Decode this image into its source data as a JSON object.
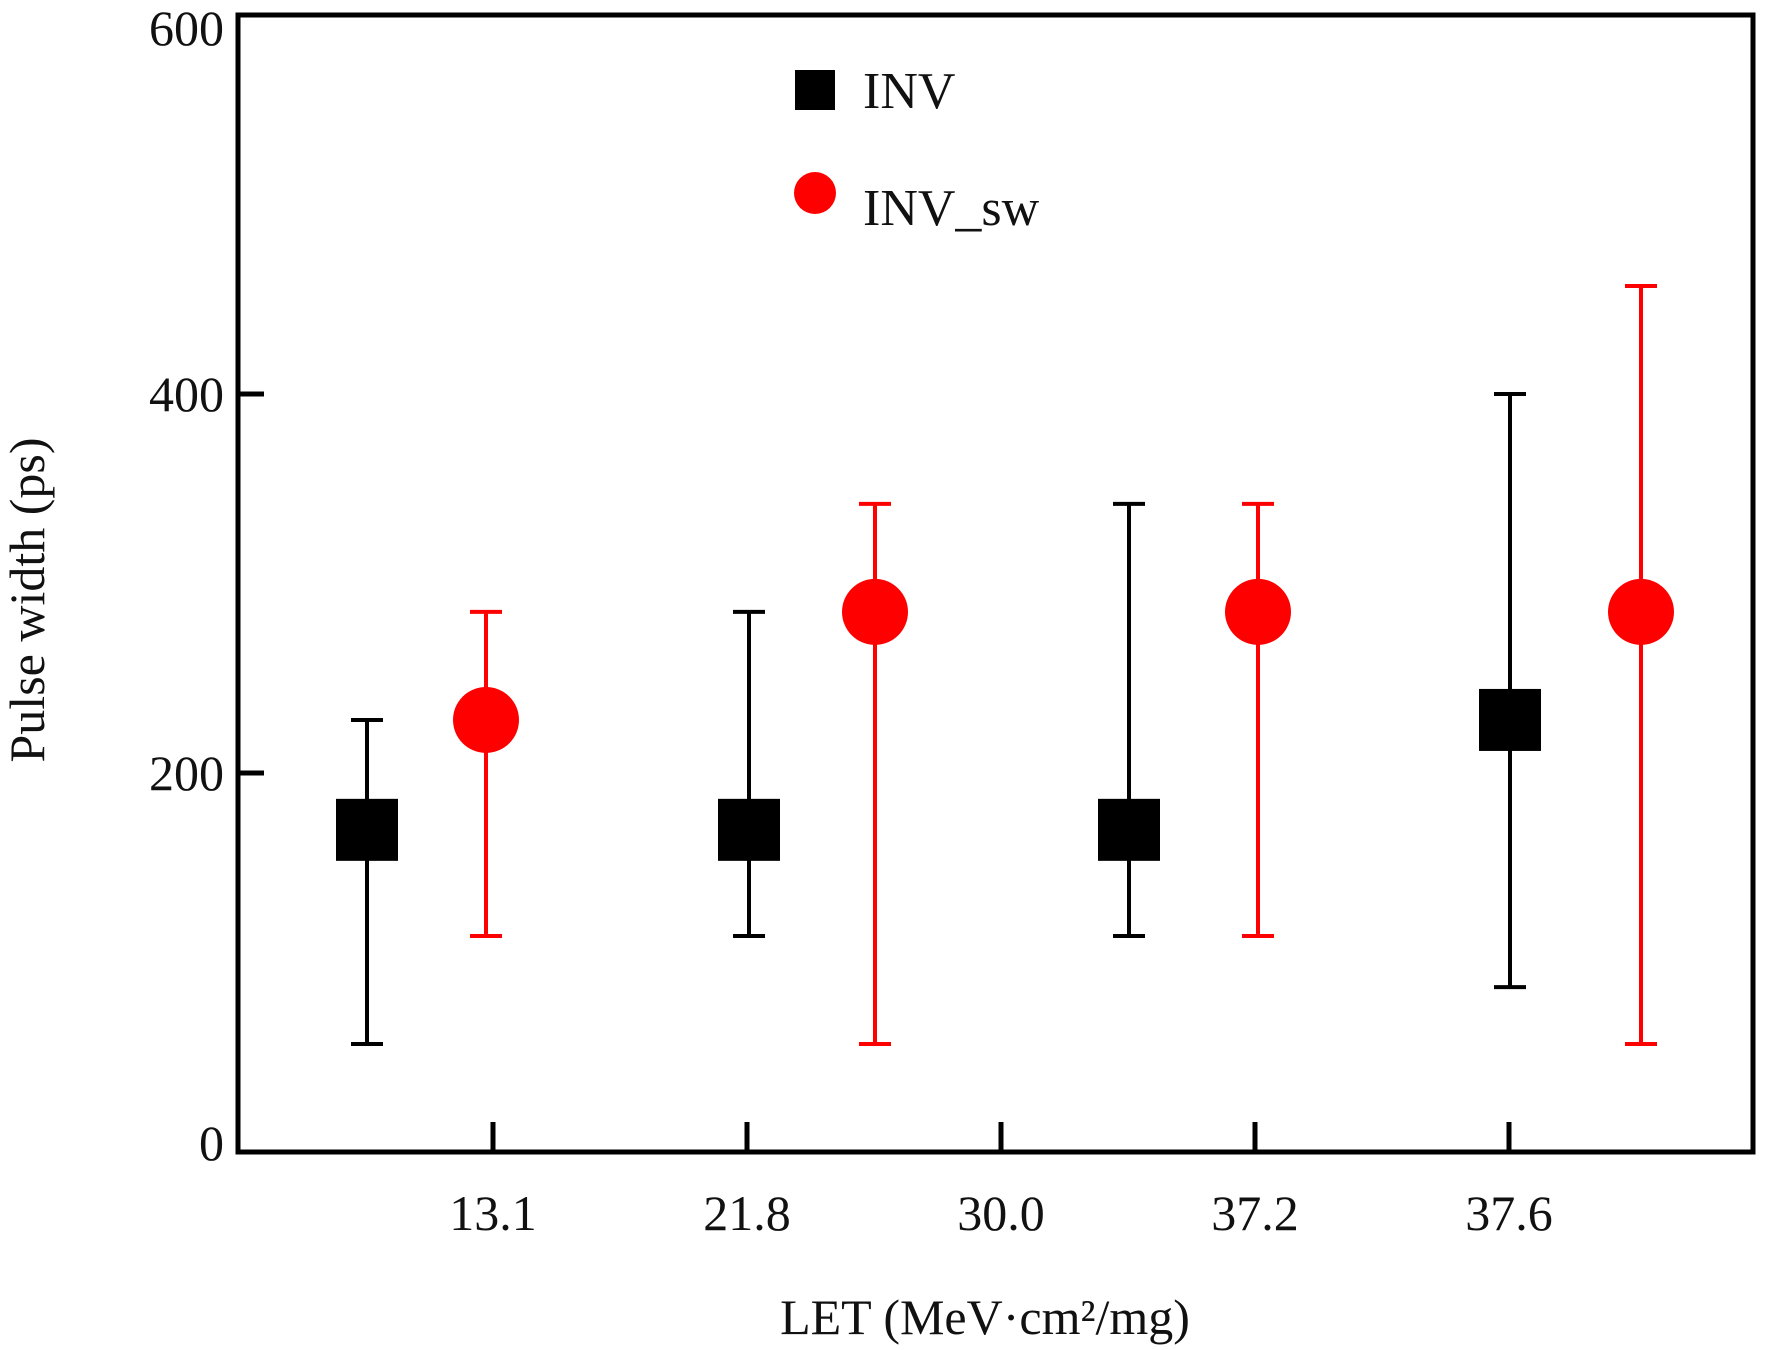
{
  "chart_data": {
    "type": "scatter",
    "title": "",
    "xlabel": "LET (MeV·cm²/mg)",
    "ylabel": "Pulse width (ps)",
    "ylim": [
      0,
      600
    ],
    "yticks": [
      "0",
      "200",
      "400",
      "600"
    ],
    "categories": [
      "13.1",
      "21.8",
      "30.0",
      "37.2",
      "37.6"
    ],
    "grid": false,
    "legend_position": "top-center",
    "series": [
      {
        "name": "INV",
        "marker": "square",
        "color": "#000000",
        "points": [
          {
            "y": 170,
            "low": 57,
            "high": 228
          },
          {
            "y": 170,
            "low": 114,
            "high": 285
          },
          {
            "y": 170,
            "low": 114,
            "high": 342
          },
          {
            "y": 228,
            "low": 87,
            "high": 400
          }
        ]
      },
      {
        "name": "INV_sw",
        "marker": "circle",
        "color": "#ff0000",
        "points": [
          {
            "y": 228,
            "low": 114,
            "high": 285
          },
          {
            "y": 285,
            "low": 57,
            "high": 342
          },
          {
            "y": 285,
            "low": 114,
            "high": 342
          },
          {
            "y": 285,
            "low": 57,
            "high": 457
          }
        ]
      }
    ]
  }
}
